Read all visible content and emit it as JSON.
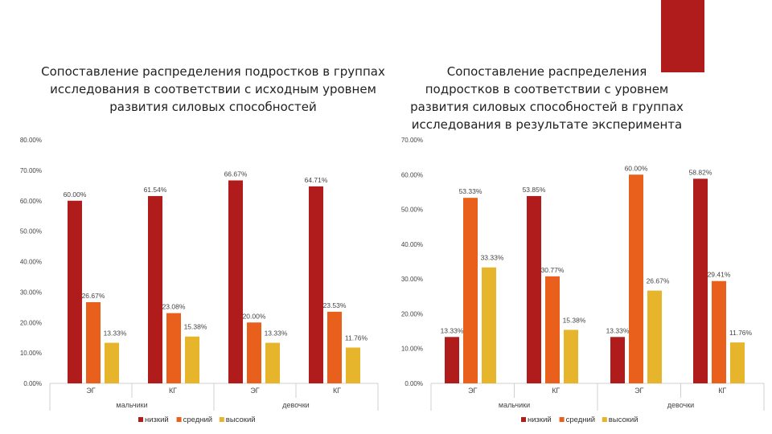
{
  "slide": {
    "accent_color": "#b01c1c"
  },
  "chart_data": [
    {
      "type": "bar",
      "title": "Сопоставление распределения подростков в группах\nисследования в соответствии с исходным уровнем\nразвития силовых способностей",
      "groups": [
        "мальчики",
        "девочки"
      ],
      "categories": [
        "ЭГ",
        "КГ",
        "ЭГ",
        "КГ"
      ],
      "category_group": [
        "мальчики",
        "мальчики",
        "девочки",
        "девочки"
      ],
      "series": [
        {
          "name": "низкий",
          "color": "#b01c1c",
          "values": [
            60.0,
            61.54,
            66.67,
            64.71
          ],
          "labels": [
            "60.00%",
            "61.54%",
            "66.67%",
            "64.71%"
          ]
        },
        {
          "name": "средний",
          "color": "#e8601c",
          "values": [
            26.67,
            23.08,
            20.0,
            23.53
          ],
          "labels": [
            "26.67%",
            "23.08%",
            "20.00%",
            "23.53%"
          ]
        },
        {
          "name": "высокий",
          "color": "#e7b52c",
          "values": [
            13.33,
            15.38,
            13.33,
            11.76
          ],
          "labels": [
            "13.33%",
            "15.38%",
            "13.33%",
            "11.76%"
          ]
        }
      ],
      "ylim": [
        0,
        80
      ],
      "yticks": [
        "0.00%",
        "10.00%",
        "20.00%",
        "30.00%",
        "40.00%",
        "50.00%",
        "60.00%",
        "70.00%",
        "80.00%"
      ],
      "legend_position": "bottom",
      "grid": false
    },
    {
      "type": "bar",
      "title": "Сопоставление распределения\nподростков в соответствии с уровнем\nразвития силовых способностей в группах\nисследования в результате эксперимента",
      "groups": [
        "мальчики",
        "девочки"
      ],
      "categories": [
        "ЭГ",
        "КГ",
        "ЭГ",
        "КГ"
      ],
      "category_group": [
        "мальчики",
        "мальчики",
        "девочки",
        "девочки"
      ],
      "series": [
        {
          "name": "низкий",
          "color": "#b01c1c",
          "values": [
            13.33,
            53.85,
            13.33,
            58.82
          ],
          "labels": [
            "13.33%",
            "53.85%",
            "13.33%",
            "58.82%"
          ]
        },
        {
          "name": "средний",
          "color": "#e8601c",
          "values": [
            53.33,
            30.77,
            60.0,
            29.41
          ],
          "labels": [
            "53.33%",
            "30.77%",
            "60.00%",
            "29.41%"
          ]
        },
        {
          "name": "высокий",
          "color": "#e7b52c",
          "values": [
            33.33,
            15.38,
            26.67,
            11.76
          ],
          "labels": [
            "33.33%",
            "15.38%",
            "26.67%",
            "11.76%"
          ]
        }
      ],
      "ylim": [
        0,
        70
      ],
      "yticks": [
        "0.00%",
        "10.00%",
        "20.00%",
        "30.00%",
        "40.00%",
        "50.00%",
        "60.00%",
        "70.00%"
      ],
      "legend_position": "bottom",
      "grid": false
    }
  ]
}
